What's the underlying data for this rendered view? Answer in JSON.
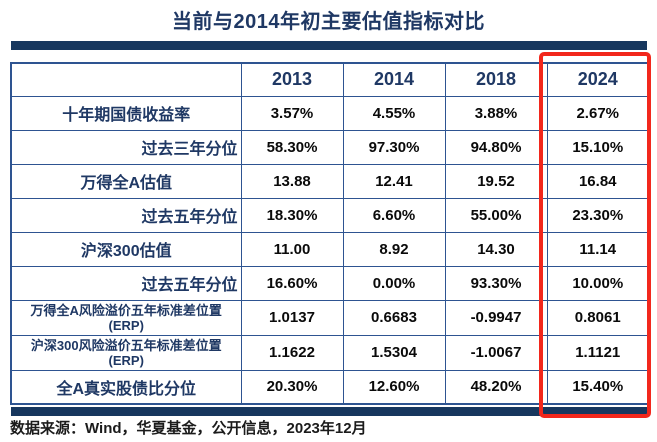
{
  "title": "当前与2014年初主要估值指标对比",
  "colors": {
    "navy_text": "#1F3864",
    "bar_navy": "#17375E",
    "table_border": "#2E5491",
    "value_text": "#0A0A0A",
    "highlight_red": "#F2271C",
    "background": "#FFFFFF"
  },
  "table": {
    "columns": [
      "",
      "2013",
      "2014",
      "2018",
      "2024"
    ],
    "highlighted_column": "2024",
    "rows": [
      {
        "label": "十年期国债收益率",
        "values": [
          "3.57%",
          "4.55%",
          "3.88%",
          "2.67%"
        ]
      },
      {
        "label": "过去三年分位",
        "values": [
          "58.30%",
          "97.30%",
          "94.80%",
          "15.10%"
        ]
      },
      {
        "label": "万得全A估值",
        "values": [
          "13.88",
          "12.41",
          "19.52",
          "16.84"
        ]
      },
      {
        "label": "过去五年分位",
        "values": [
          "18.30%",
          "6.60%",
          "55.00%",
          "23.30%"
        ]
      },
      {
        "label": "沪深300估值",
        "values": [
          "11.00",
          "8.92",
          "14.30",
          "11.14"
        ]
      },
      {
        "label": "过去五年分位",
        "values": [
          "16.60%",
          "0.00%",
          "93.30%",
          "10.00%"
        ]
      },
      {
        "label": "万得全A风险溢价五年标准差位置\n(ERP)",
        "values": [
          "1.0137",
          "0.6683",
          "-0.9947",
          "0.8061"
        ]
      },
      {
        "label": "沪深300风险溢价五年标准差位置\n(ERP)",
        "values": [
          "1.1622",
          "1.5304",
          "-1.0067",
          "1.1121"
        ]
      },
      {
        "label": "全A真实股债比分位",
        "values": [
          "20.30%",
          "12.60%",
          "48.20%",
          "15.40%"
        ]
      }
    ]
  },
  "footer": {
    "source": "数据来源：Wind，华夏基金，公开信息，2023年12月"
  },
  "chart_data": {
    "type": "table",
    "title": "当前与2014年初主要估值指标对比",
    "categories": [
      "十年期国债收益率",
      "过去三年分位",
      "万得全A估值",
      "过去五年分位",
      "沪深300估值",
      "过去五年分位",
      "万得全A风险溢价五年标准差位置(ERP)",
      "沪深300风险溢价五年标准差位置(ERP)",
      "全A真实股债比分位"
    ],
    "series": [
      {
        "name": "2013",
        "values": [
          3.57,
          58.3,
          13.88,
          18.3,
          11.0,
          16.6,
          1.0137,
          1.1622,
          20.3
        ]
      },
      {
        "name": "2014",
        "values": [
          4.55,
          97.3,
          12.41,
          6.6,
          8.92,
          0.0,
          0.6683,
          1.5304,
          12.6
        ]
      },
      {
        "name": "2018",
        "values": [
          3.88,
          94.8,
          19.52,
          55.0,
          14.3,
          93.3,
          -0.9947,
          -1.0067,
          48.2
        ]
      },
      {
        "name": "2024",
        "values": [
          2.67,
          15.1,
          16.84,
          23.3,
          11.14,
          10.0,
          0.8061,
          1.1121,
          15.4
        ]
      }
    ],
    "units_by_row": [
      "%",
      "%",
      "ratio",
      "%",
      "ratio",
      "%",
      "std",
      "std",
      "%"
    ],
    "annotation": "red box highlights 2024 column",
    "legend_position": "none",
    "grid": true
  }
}
